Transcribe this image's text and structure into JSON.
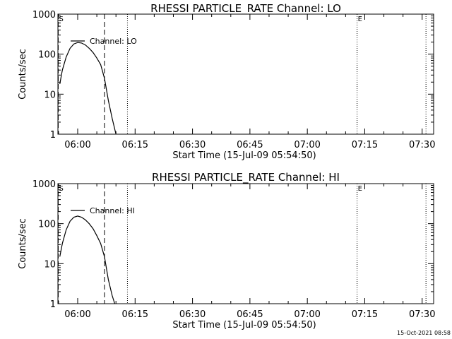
{
  "chart_data": [
    {
      "type": "line",
      "title": "RHESSI PARTICLE_RATE Channel: LO",
      "xlabel": "Start Time (15-Jul-09 05:54:50)",
      "ylabel": "Counts/sec",
      "yscale": "log",
      "ylim": [
        1,
        1000
      ],
      "xlim": [
        "05:54:50",
        "07:33:00"
      ],
      "xticks": [
        "06:00",
        "06:15",
        "06:30",
        "06:45",
        "07:00",
        "07:15",
        "07:30"
      ],
      "yticks": [
        "1",
        "10",
        "100",
        "1000"
      ],
      "legend": {
        "position": "top-left",
        "entries": [
          "Channel: LO"
        ]
      },
      "markers": [
        {
          "time": "05:54:55",
          "label": "S",
          "style": "dashed"
        },
        {
          "time": "06:07:00",
          "label": "",
          "style": "dashed"
        },
        {
          "time": "06:13:00",
          "label": "",
          "style": "dotted"
        },
        {
          "time": "07:13:00",
          "label": "E",
          "style": "dotted"
        },
        {
          "time": "07:31:00",
          "label": "",
          "style": "dotted"
        }
      ],
      "series": [
        {
          "name": "Channel: LO",
          "x": [
            "05:55:20",
            "05:56:00",
            "05:57:00",
            "05:58:00",
            "05:59:00",
            "06:00:00",
            "06:01:00",
            "06:02:00",
            "06:03:00",
            "06:04:00",
            "06:05:00",
            "06:06:00",
            "06:07:00",
            "06:08:00",
            "06:09:00",
            "06:10:00"
          ],
          "y": [
            18,
            40,
            85,
            140,
            180,
            195,
            190,
            170,
            140,
            110,
            80,
            55,
            25,
            7,
            2.5,
            1.0
          ]
        }
      ]
    },
    {
      "type": "line",
      "title": "RHESSI PARTICLE_RATE Channel: HI",
      "xlabel": "Start Time (15-Jul-09 05:54:50)",
      "ylabel": "Counts/sec",
      "yscale": "log",
      "ylim": [
        1,
        1000
      ],
      "xlim": [
        "05:54:50",
        "07:33:00"
      ],
      "xticks": [
        "06:00",
        "06:15",
        "06:30",
        "06:45",
        "07:00",
        "07:15",
        "07:30"
      ],
      "yticks": [
        "1",
        "10",
        "100",
        "1000"
      ],
      "legend": {
        "position": "top-left",
        "entries": [
          "Channel: HI"
        ]
      },
      "markers": [
        {
          "time": "05:54:55",
          "label": "S",
          "style": "dashed"
        },
        {
          "time": "06:07:00",
          "label": "",
          "style": "dashed"
        },
        {
          "time": "06:13:00",
          "label": "",
          "style": "dotted"
        },
        {
          "time": "07:13:00",
          "label": "E",
          "style": "dotted"
        },
        {
          "time": "07:31:00",
          "label": "",
          "style": "dotted"
        }
      ],
      "series": [
        {
          "name": "Channel: HI",
          "x": [
            "05:55:20",
            "05:56:00",
            "05:57:00",
            "05:58:00",
            "05:59:00",
            "06:00:00",
            "06:01:00",
            "06:02:00",
            "06:03:00",
            "06:04:00",
            "06:05:00",
            "06:06:00",
            "06:07:00",
            "06:08:00",
            "06:09:00",
            "06:10:00"
          ],
          "y": [
            15,
            32,
            70,
            115,
            145,
            155,
            145,
            125,
            100,
            75,
            50,
            32,
            15,
            4,
            1.6,
            0.8
          ]
        }
      ]
    }
  ],
  "footer": {
    "timestamp": "15-Oct-2021 08:58"
  }
}
